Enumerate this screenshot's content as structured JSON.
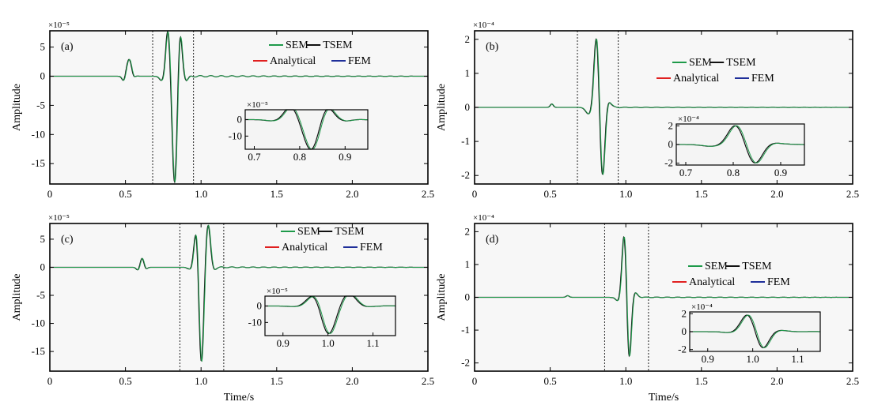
{
  "header_fragment": "",
  "xlabel": "Time/s",
  "ylabel": "Amplitude",
  "legend": {
    "entries": [
      {
        "name": "SEM",
        "color": "#1e9a4a"
      },
      {
        "name": "TSEM",
        "color": "#111111"
      },
      {
        "name": "Analytical",
        "color": "#e02020"
      },
      {
        "name": "FEM",
        "color": "#1f2f9a"
      }
    ]
  },
  "chart_data": [
    {
      "type": "line",
      "tag": "(a)",
      "multiplier": "×10⁻⁵",
      "xlim": [
        0,
        2.5
      ],
      "ylim": [
        -18.5,
        7.8
      ],
      "xticks": [
        "0",
        "0.5",
        "1.0",
        "1.5",
        "2.0",
        "2.5"
      ],
      "yticks": [
        5,
        0,
        -5,
        -10,
        -15
      ],
      "window": [
        0.68,
        0.95
      ],
      "signal": {
        "gaussians": [
          [
            0.525,
            3,
            0.02
          ],
          [
            0.49,
            -1.2,
            0.012
          ],
          [
            0.55,
            -1.0,
            0.012
          ],
          [
            0.78,
            8,
            0.014
          ],
          [
            0.86,
            8,
            0.014
          ],
          [
            0.825,
            -18.5,
            0.016
          ],
          [
            0.74,
            -0.8,
            0.015
          ],
          [
            0.9,
            -0.8,
            0.015
          ]
        ],
        "noise": 0.25
      },
      "inset": {
        "multiplier": "×10⁻⁵",
        "xlim": [
          0.68,
          0.95
        ],
        "ylim": [
          -18,
          6
        ],
        "xticks": [
          "0.7",
          "0.8",
          "0.9"
        ],
        "yticks": [
          0,
          -10
        ]
      }
    },
    {
      "type": "line",
      "tag": "(b)",
      "multiplier": "×10⁻⁴",
      "xlim": [
        0,
        2.5
      ],
      "ylim": [
        -2.25,
        2.25
      ],
      "xticks": [
        "0",
        "0.5",
        "1.0",
        "1.5",
        "2.0",
        "2.5"
      ],
      "yticks": [
        2,
        1,
        0,
        -1,
        -2
      ],
      "window": [
        0.68,
        0.95
      ],
      "signal": {
        "gaussians": [
          [
            0.51,
            0.1,
            0.01
          ],
          [
            0.805,
            2.1,
            0.016
          ],
          [
            0.845,
            -2.1,
            0.016
          ],
          [
            0.755,
            -0.2,
            0.02
          ],
          [
            0.88,
            0.2,
            0.02
          ]
        ],
        "noise": 0.02
      },
      "inset": {
        "multiplier": "×10⁻⁴",
        "xlim": [
          0.68,
          0.95
        ],
        "ylim": [
          -2.2,
          2.2
        ],
        "xticks": [
          "0.7",
          "0.8",
          "0.9"
        ],
        "yticks": [
          2,
          0,
          -2
        ]
      }
    },
    {
      "type": "line",
      "tag": "(c)",
      "multiplier": "×10⁻⁵",
      "xlim": [
        0,
        2.5
      ],
      "ylim": [
        -18.5,
        7.8
      ],
      "xticks": [
        "0",
        "0.5",
        "1.0",
        "1.5",
        "2.0",
        "2.5"
      ],
      "yticks": [
        5,
        0,
        -5,
        -10,
        -15
      ],
      "window": [
        0.86,
        1.15
      ],
      "signal": {
        "gaussians": [
          [
            0.61,
            1.8,
            0.014
          ],
          [
            0.585,
            -0.7,
            0.012
          ],
          [
            0.63,
            -0.6,
            0.012
          ],
          [
            0.97,
            7.8,
            0.016
          ],
          [
            1.045,
            7.8,
            0.016
          ],
          [
            1.0,
            -18.2,
            0.016
          ],
          [
            0.93,
            -0.6,
            0.015
          ],
          [
            1.08,
            -0.6,
            0.015
          ]
        ],
        "noise": 0.2
      },
      "inset": {
        "multiplier": "×10⁻⁵",
        "xlim": [
          0.86,
          1.15
        ],
        "ylim": [
          -18,
          6
        ],
        "xticks": [
          "0.9",
          "1.0",
          "1.1"
        ],
        "yticks": [
          0,
          -10
        ]
      }
    },
    {
      "type": "line",
      "tag": "(d)",
      "multiplier": "×10⁻⁴",
      "xlim": [
        0,
        2.5
      ],
      "ylim": [
        -2.25,
        2.25
      ],
      "xticks": [
        "0",
        "0.5",
        "1.0",
        "1.5",
        "2.0",
        "2.5"
      ],
      "yticks": [
        2,
        1,
        0,
        -1,
        -2
      ],
      "window": [
        0.86,
        1.15
      ],
      "signal": {
        "gaussians": [
          [
            0.615,
            0.05,
            0.01
          ],
          [
            0.99,
            2.1,
            0.016
          ],
          [
            1.02,
            -2.15,
            0.015
          ],
          [
            0.955,
            -0.15,
            0.02
          ],
          [
            1.05,
            0.2,
            0.02
          ]
        ],
        "noise": 0.02
      },
      "inset": {
        "multiplier": "×10⁻⁴",
        "xlim": [
          0.86,
          1.15
        ],
        "ylim": [
          -2.2,
          2.2
        ],
        "xticks": [
          "0.9",
          "1.0",
          "1.1"
        ],
        "yticks": [
          2,
          0,
          -2
        ]
      }
    }
  ]
}
